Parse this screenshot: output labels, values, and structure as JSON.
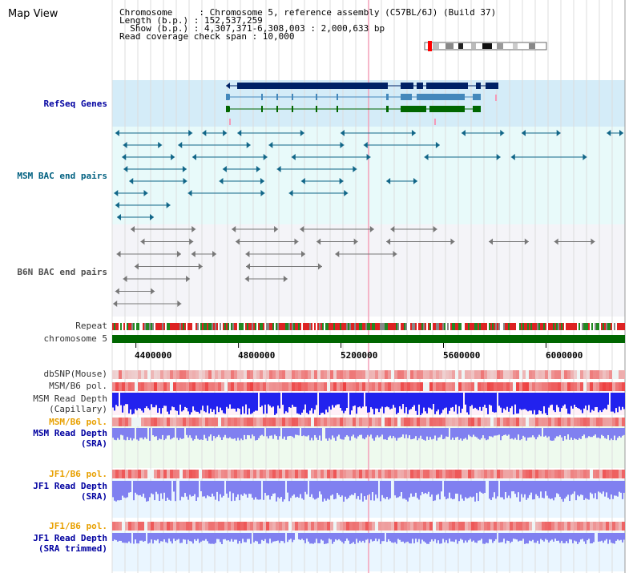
{
  "title": "Map View",
  "info": {
    "chromosome_label": "Chromosome     : Chromosome 5, reference assembly (C57BL/6J) (Build 37)",
    "length_label": "Length (b.p.) : 152,537,259",
    "show_label": "  Show (b.p.) : 4,307,371-6,308,003 : 2,000,633 bp",
    "span_label": "Read coverage check span : 10,000"
  },
  "tracks": {
    "refseq": "RefSeq Genes",
    "msm_bac": "MSM BAC end pairs",
    "b6n_bac": "B6N BAC end pairs",
    "repeat": "Repeat",
    "chromosome": "chromosome 5",
    "dbsnp": "dbSNP(Mouse)",
    "msm_b6_pol_1": "MSM/B6 pol.",
    "msm_depth_cap_1": "MSM Read Depth",
    "msm_depth_cap_2": "(Capillary)",
    "msm_b6_pol_2": "MSM/B6 pol.",
    "msm_depth_sra_1": "MSM Read Depth",
    "msm_depth_sra_2": "(SRA)",
    "jf1_b6_pol_1": "JF1/B6 pol.",
    "jf1_depth_sra_1": "JF1 Read Depth",
    "jf1_depth_sra_2": "(SRA)",
    "jf1_b6_pol_2": "JF1/B6 pol.",
    "jf1_depth_trim_1": "JF1 Read Depth",
    "jf1_depth_trim_2": "(SRA trimmed)"
  },
  "axis": {
    "range": [
      4307371,
      6308003
    ],
    "ticks": [
      {
        "value": 4400000,
        "label": "4400000"
      },
      {
        "value": 4800000,
        "label": "4800000"
      },
      {
        "value": 5200000,
        "label": "5200000"
      },
      {
        "value": 5600000,
        "label": "5600000"
      },
      {
        "value": 6000000,
        "label": "6000000"
      }
    ]
  },
  "colors": {
    "refseq_bg": "#d4ecf8",
    "msm_bg": "#e8fafa",
    "b6n_bg": "#f4f4f8",
    "gene_dark": "#002266",
    "gene_mid": "#4488bb",
    "gene_green": "#006600",
    "bac_teal": "#116688",
    "bac_grey": "#777777",
    "chromosome": "#006600",
    "depth_capillary": "#2222ee",
    "depth_sra": "#8080f0",
    "pol_red": "#ee3333"
  }
}
